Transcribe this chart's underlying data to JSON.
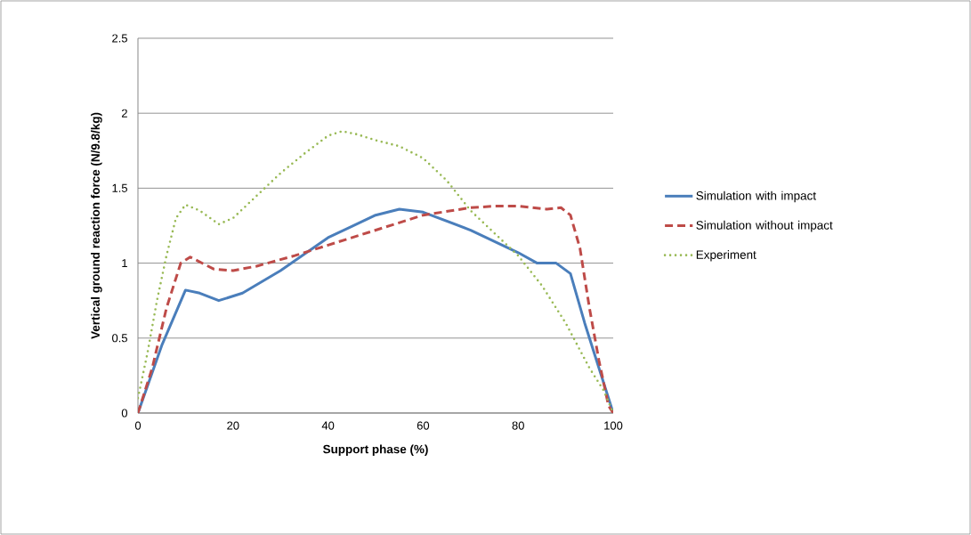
{
  "chart_data": {
    "type": "line",
    "xlabel": "Support phase (%)",
    "ylabel": "Vertical ground reaction force (N/9.8/kg)",
    "xlim": [
      0,
      100
    ],
    "ylim": [
      0,
      2.5
    ],
    "xticks": [
      0,
      20,
      40,
      60,
      80,
      100
    ],
    "yticks": [
      0,
      0.5,
      1,
      1.5,
      2,
      2.5
    ],
    "grid": "y",
    "legend": "right",
    "marker": "none",
    "series": [
      {
        "name": "Simulation with impact",
        "color": "#4a7ebb",
        "line_style": "solid",
        "x": [
          0,
          5,
          10,
          13,
          17,
          22,
          30,
          40,
          50,
          55,
          60,
          70,
          80,
          84,
          88,
          91,
          94,
          97,
          100
        ],
        "values": [
          0,
          0.45,
          0.82,
          0.8,
          0.75,
          0.8,
          0.95,
          1.17,
          1.32,
          1.36,
          1.34,
          1.22,
          1.07,
          1.0,
          1.0,
          0.93,
          0.6,
          0.3,
          0
        ]
      },
      {
        "name": "Simulation without impact",
        "color": "#be4b48",
        "line_style": "dashed",
        "x": [
          0,
          3,
          6,
          9,
          11,
          16,
          20,
          25,
          33,
          40,
          50,
          60,
          70,
          75,
          80,
          86,
          89,
          91,
          93,
          95,
          97,
          99,
          100
        ],
        "values": [
          0,
          0.3,
          0.7,
          1.0,
          1.04,
          0.96,
          0.95,
          0.98,
          1.05,
          1.12,
          1.22,
          1.32,
          1.37,
          1.38,
          1.38,
          1.36,
          1.37,
          1.32,
          1.1,
          0.7,
          0.35,
          0.05,
          0
        ]
      },
      {
        "name": "Experiment",
        "color": "#98b954",
        "line_style": "dotted",
        "x": [
          0,
          2,
          4,
          6,
          8,
          10,
          13,
          17,
          20,
          25,
          30,
          35,
          40,
          43,
          46,
          50,
          55,
          60,
          65,
          70,
          75,
          80,
          85,
          90,
          95,
          98,
          100
        ],
        "values": [
          0.1,
          0.4,
          0.75,
          1.05,
          1.3,
          1.39,
          1.35,
          1.26,
          1.3,
          1.45,
          1.6,
          1.73,
          1.85,
          1.88,
          1.86,
          1.82,
          1.78,
          1.7,
          1.55,
          1.35,
          1.2,
          1.05,
          0.85,
          0.6,
          0.3,
          0.15,
          0
        ]
      }
    ]
  }
}
